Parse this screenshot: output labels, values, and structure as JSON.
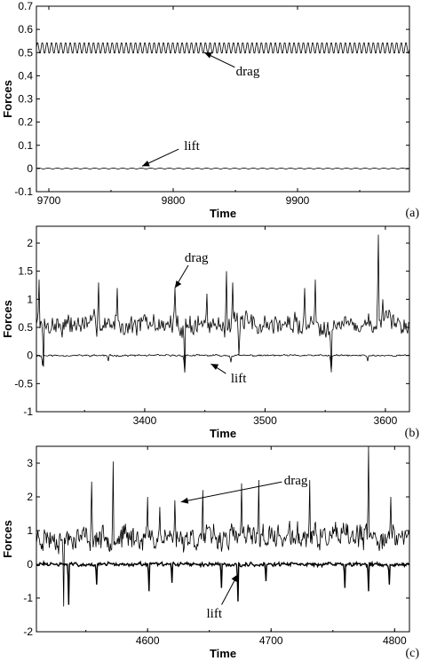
{
  "chart_data": [
    {
      "panel": "(a)",
      "type": "line",
      "xlabel": "Time",
      "ylabel": "Forces",
      "xlim": [
        9690,
        9990
      ],
      "ylim": [
        -0.1,
        0.7
      ],
      "xticks": [
        "9700",
        "9800",
        "9900"
      ],
      "yticks": [
        "-0.1",
        "0",
        "0.1",
        "0.2",
        "0.3",
        "0.4",
        "0.5",
        "0.6",
        "0.7"
      ],
      "series": [
        {
          "name": "drag",
          "mean": 0.52,
          "amplitude": 0.025,
          "cycles": 80,
          "noise": 0.0
        },
        {
          "name": "lift",
          "mean": 0.0,
          "amplitude": 0.002,
          "cycles": 40,
          "noise": 0.0
        }
      ],
      "annotations": [
        {
          "text": "drag",
          "x": 9860,
          "y": 0.42,
          "arrow_to": [
            9825,
            0.5
          ]
        },
        {
          "text": "lift",
          "x": 9815,
          "y": 0.1,
          "arrow_to": [
            9775,
            0.01
          ]
        }
      ]
    },
    {
      "panel": "(b)",
      "type": "line",
      "xlabel": "Time",
      "ylabel": "Forces",
      "xlim": [
        3310,
        3620
      ],
      "ylim": [
        -1,
        2.3
      ],
      "xticks": [
        "3400",
        "3500",
        "3600"
      ],
      "yticks": [
        "-1",
        "-0.5",
        "0",
        "0.5",
        "1",
        "1.5",
        "2"
      ],
      "series": [
        {
          "name": "drag",
          "mean": 0.55,
          "noise": 0.25,
          "samples": 420,
          "seed": 7,
          "spikes": [
            [
              3312,
              1.35
            ],
            [
              3316,
              -0.2
            ],
            [
              3362,
              1.3
            ],
            [
              3377,
              1.2
            ],
            [
              3425,
              1.2
            ],
            [
              3433,
              -0.3
            ],
            [
              3452,
              1.1
            ],
            [
              3468,
              1.5
            ],
            [
              3473,
              1.3
            ],
            [
              3478,
              0.0
            ],
            [
              3533,
              1.2
            ],
            [
              3542,
              1.35
            ],
            [
              3555,
              -0.3
            ],
            [
              3594,
              2.15
            ],
            [
              3598,
              1.0
            ]
          ]
        },
        {
          "name": "lift",
          "mean": 0.0,
          "noise": 0.02,
          "samples": 420,
          "seed": 11,
          "spikes": [
            [
              3315,
              -0.18
            ],
            [
              3370,
              -0.1
            ],
            [
              3433,
              -0.3
            ],
            [
              3472,
              -0.12
            ],
            [
              3555,
              -0.28
            ],
            [
              3585,
              -0.1
            ]
          ]
        }
      ],
      "annotations": [
        {
          "text": "drag",
          "x": 3443,
          "y": 1.75,
          "arrow_to": [
            3425,
            1.2
          ]
        },
        {
          "text": "lift",
          "x": 3478,
          "y": -0.4,
          "arrow_to": [
            3455,
            -0.15
          ]
        }
      ]
    },
    {
      "panel": "(c)",
      "type": "line",
      "xlabel": "Time",
      "ylabel": "Forces",
      "xlim": [
        4510,
        4812
      ],
      "ylim": [
        -2,
        3.5
      ],
      "xticks": [
        "4600",
        "4700",
        "4800"
      ],
      "yticks": [
        "-2",
        "-1",
        "0",
        "1",
        "2",
        "3"
      ],
      "series": [
        {
          "name": "drag",
          "mean": 0.8,
          "noise": 0.45,
          "samples": 520,
          "seed": 23,
          "spikes": [
            [
              4532,
              -1.25
            ],
            [
              4555,
              2.45
            ],
            [
              4572,
              3.05
            ],
            [
              4600,
              2.0
            ],
            [
              4610,
              1.7
            ],
            [
              4622,
              1.9
            ],
            [
              4645,
              2.2
            ],
            [
              4676,
              2.4
            ],
            [
              4690,
              2.5
            ],
            [
              4731,
              2.5
            ],
            [
              4779,
              3.5
            ],
            [
              4797,
              2.0
            ]
          ]
        },
        {
          "name": "lift",
          "mean": 0.0,
          "noise": 0.07,
          "samples": 520,
          "seed": 31,
          "spikes": [
            [
              4536,
              -1.2
            ],
            [
              4559,
              -0.6
            ],
            [
              4601,
              -0.8
            ],
            [
              4620,
              -0.55
            ],
            [
              4660,
              -0.7
            ],
            [
              4673,
              -1.1
            ],
            [
              4696,
              -0.5
            ],
            [
              4760,
              -0.7
            ],
            [
              4779,
              -0.8
            ],
            [
              4796,
              -0.6
            ]
          ]
        }
      ],
      "annotations": [
        {
          "text": "drag",
          "x": 4720,
          "y": 2.5,
          "arrow_to": [
            4627,
            1.85
          ]
        },
        {
          "text": "lift",
          "x": 4654,
          "y": -1.45,
          "arrow_to": [
            4673,
            -0.3
          ]
        }
      ]
    }
  ]
}
